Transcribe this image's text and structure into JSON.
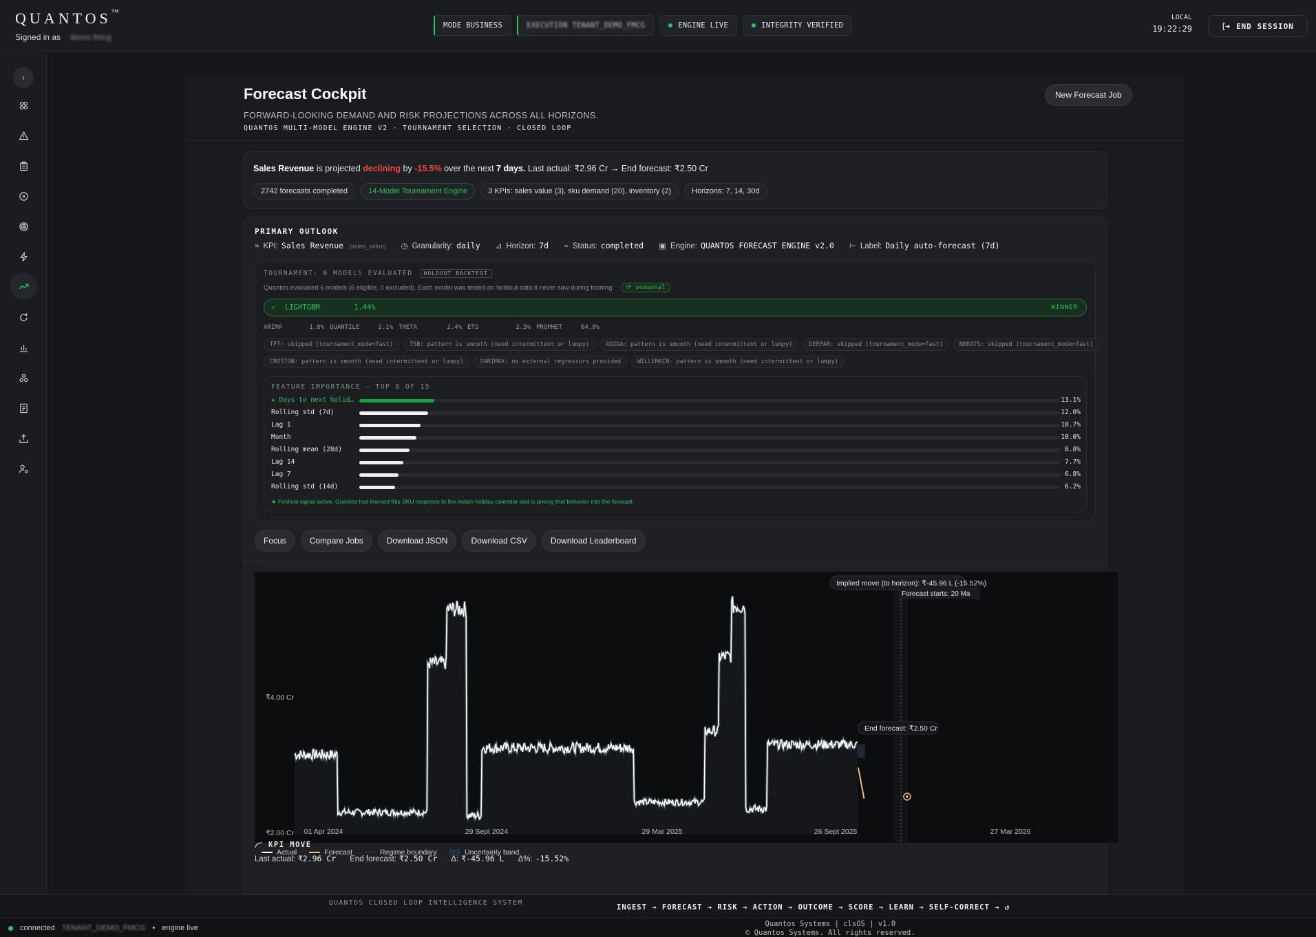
{
  "topbar": {
    "brand": "QUANTOS",
    "brand_mark": "™",
    "signed_in_label": "Signed in as",
    "signed_in_user": "demo.fmcg",
    "pills": [
      {
        "label": "MODE BUSINESS",
        "style": "bar"
      },
      {
        "label": "EXECUTION TENANT_DEMO_FMCG",
        "style": "bar-blur"
      },
      {
        "label": "ENGINE LIVE",
        "style": "dot"
      },
      {
        "label": "INTEGRITY VERIFIED",
        "style": "dot"
      }
    ],
    "clock_label": "LOCAL",
    "clock_time": "19:22:29",
    "end_session": "END SESSION"
  },
  "sidebar": {
    "icons": [
      "chevron-right-icon",
      "network-icon",
      "warning-icon",
      "clipboard-icon",
      "target-icon",
      "radar-icon",
      "lightning-icon",
      "trend-up-icon",
      "refresh-icon",
      "bar-chart-icon",
      "nodes-icon",
      "document-icon",
      "upload-icon",
      "user-settings-icon"
    ],
    "active_index": 7
  },
  "page": {
    "title": "Forecast Cockpit",
    "subtitle": "FORWARD-LOOKING DEMAND AND RISK PROJECTIONS ACROSS ALL HORIZONS.",
    "engine_line": "QUANTOS MULTI-MODEL ENGINE V2 · TOURNAMENT SELECTION · CLOSED LOOP",
    "new_job": "New Forecast Job"
  },
  "summary": {
    "kpi": "Sales Revenue",
    "t1": "is projected",
    "trend": "declining",
    "t2": "by",
    "pct": "-15.5%",
    "t3": "over the next",
    "horizon": "7 days.",
    "t4": "Last actual: ₹2.96 Cr → End forecast: ₹2.50 Cr",
    "chips": [
      {
        "label": "2742 forecasts completed",
        "green": false
      },
      {
        "label": "14-Model Tournament Engine",
        "green": true
      },
      {
        "label": "3 KPIs: sales value (3), sku demand (20), inventory (2)",
        "green": false
      },
      {
        "label": "Horizons: 7, 14, 30d",
        "green": false
      }
    ]
  },
  "outlook": {
    "label": "PRIMARY OUTLOOK",
    "kpi_label": "KPI:",
    "kpi_value": "Sales Revenue",
    "kpi_key": "(sales_value)",
    "gran_label": "Granularity:",
    "gran_value": "daily",
    "hor_label": "Horizon:",
    "hor_value": "7d",
    "status_label": "Status:",
    "status_value": "completed",
    "engine_label": "Engine:",
    "engine_value": "QUANTOS FORECAST ENGINE v2.0",
    "lbl_label": "Label:",
    "lbl_value": "Daily auto-forecast (7d)"
  },
  "tournament": {
    "label": "TOURNAMENT: 6 MODELS EVALUATED",
    "tag": "HOLDOUT BACKTEST",
    "desc": "Quantos evaluated 6 models (6 eligible, 0 excluded). Each model was tested on holdout data it never saw during training.",
    "seasonal": "⟳ seasonal",
    "winner": {
      "check": "✓",
      "name": "LIGHTGBM",
      "score": "1.44%",
      "label": "WINNER"
    },
    "others": [
      {
        "name": "ARIMA",
        "score": "1.8%"
      },
      {
        "name": "QUANTILE",
        "score": "2.1%"
      },
      {
        "name": "THETA",
        "score": "2.4%"
      },
      {
        "name": "ETS",
        "score": "2.5%"
      },
      {
        "name": "PROPHET",
        "score": "64.8%"
      }
    ],
    "excluded_row1": [
      "TFT: skipped (tournament_mode=fast)",
      "TSB: pattern is smooth (need intermittent or lumpy)",
      "ADIDA: pattern is smooth (need intermittent or lumpy)",
      "DEEPAR: skipped (tournament_mode=fast)",
      "NBEATS: skipped (tournament_mode=fast)"
    ],
    "excluded_row2": [
      "CROSTON: pattern is smooth (need intermittent or lumpy)",
      "SARIMAX: no external regressors provided",
      "WILLEMAIN: pattern is smooth (need intermittent or lumpy)"
    ]
  },
  "features": {
    "label": "FEATURE IMPORTANCE — TOP 8 OF 15",
    "items": [
      {
        "name": "★ Days to next holid…",
        "value": 13.1,
        "display": "13.1%",
        "highlight": true
      },
      {
        "name": "Rolling std (7d)",
        "value": 12.0,
        "display": "12.0%",
        "highlight": false
      },
      {
        "name": "Lag 1",
        "value": 10.7,
        "display": "10.7%",
        "highlight": false
      },
      {
        "name": "Month",
        "value": 10.0,
        "display": "10.0%",
        "highlight": false
      },
      {
        "name": "Rolling mean (28d)",
        "value": 8.8,
        "display": "8.8%",
        "highlight": false
      },
      {
        "name": "Lag 14",
        "value": 7.7,
        "display": "7.7%",
        "highlight": false
      },
      {
        "name": "Lag 7",
        "value": 6.8,
        "display": "6.8%",
        "highlight": false
      },
      {
        "name": "Rolling std (14d)",
        "value": 6.2,
        "display": "6.2%",
        "highlight": false
      }
    ],
    "note": "★ Festival signal active. Quantos has learned this SKU responds to the Indian holiday calendar and is pricing that behavior into the forecast."
  },
  "actions": [
    "Focus",
    "Compare Jobs",
    "Download JSON",
    "Download CSV",
    "Download Leaderboard"
  ],
  "chart_data": {
    "type": "line",
    "x_ticks": [
      "01 Apr 2024",
      "29 Sept 2024",
      "29 Mar 2025",
      "26 Sept 2025",
      "27 Mar 2026"
    ],
    "y_ticks": [
      {
        "label": "₹4.00 Cr",
        "value": 4.0
      },
      {
        "label": "₹2.00 Cr",
        "value": 2.0
      }
    ],
    "ylim": [
      1.85,
      5.85
    ],
    "xlim_days": [
      0,
      725
    ],
    "series": [
      {
        "name": "Actual",
        "color": "#ffffff",
        "segments": [
          {
            "from": 0,
            "to": 52,
            "level": 3.15,
            "noise": 0.08
          },
          {
            "from": 52,
            "to": 160,
            "level": 2.3,
            "noise": 0.05
          },
          {
            "from": 160,
            "to": 183,
            "level": 4.5,
            "noise": 0.1
          },
          {
            "from": 183,
            "to": 207,
            "level": 5.3,
            "noise": 0.12
          },
          {
            "from": 207,
            "to": 225,
            "level": 2.25,
            "noise": 0.06
          },
          {
            "from": 225,
            "to": 408,
            "level": 3.25,
            "noise": 0.08
          },
          {
            "from": 408,
            "to": 493,
            "level": 2.45,
            "noise": 0.05
          },
          {
            "from": 493,
            "to": 510,
            "level": 3.5,
            "noise": 0.08
          },
          {
            "from": 510,
            "to": 525,
            "level": 4.6,
            "noise": 0.1
          },
          {
            "from": 525,
            "to": 542,
            "level": 5.35,
            "noise": 0.14
          },
          {
            "from": 542,
            "to": 568,
            "level": 2.35,
            "noise": 0.06
          },
          {
            "from": 568,
            "to": 677,
            "level": 3.3,
            "noise": 0.07
          }
        ]
      },
      {
        "name": "Forecast",
        "color": "#f5b971",
        "start": 2.96,
        "end": 2.5,
        "from": 677,
        "to": 684
      }
    ],
    "forecast_start_day": 677,
    "legend": [
      "Actual",
      "Forecast",
      "Regime boundary",
      "Uncertainty band"
    ],
    "annotations": {
      "implied_move": "Implied move (to horizon): ₹-45.96 L (-15.52%)",
      "forecast_starts": "Forecast starts: 20 Ma",
      "end_forecast": "End forecast: ₹2.50 Cr"
    }
  },
  "kpi_move": {
    "label": "KPI MOVE",
    "last_actual_label": "Last actual:",
    "last_actual": "₹2.96 Cr",
    "end_forecast_label": "End forecast:",
    "end_forecast": "₹2.50 Cr",
    "delta_label": "Δ:",
    "delta": "₹-45.96 L",
    "delta_pct_label": "Δ%:",
    "delta_pct": "-15.52%"
  },
  "footer": {
    "system": "QUANTOS CLOSED LOOP INTELLIGENCE SYSTEM",
    "loop": "INGEST → FORECAST → RISK → ACTION → OUTCOME → SCORE → LEARN → SELF-CORRECT → ↺",
    "status_connected": "connected",
    "status_tenant": "TENANT_DEMO_FMCG",
    "status_sep": "•",
    "status_engine": "engine live",
    "version": "Quantos Systems | clsOS | v1.0",
    "copyright": "© Quantos Systems. All rights reserved."
  }
}
